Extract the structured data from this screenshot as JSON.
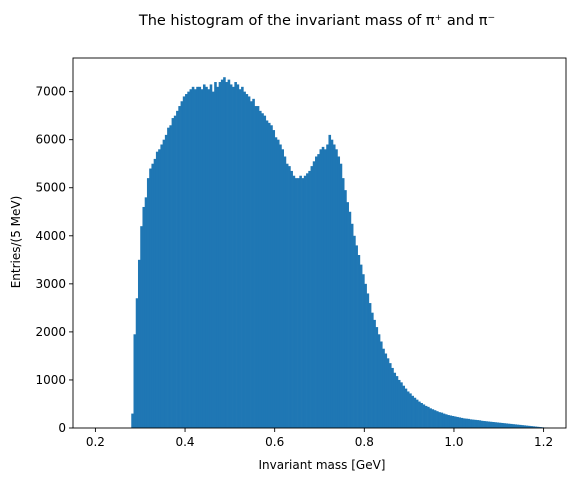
{
  "chart_data": {
    "type": "bar",
    "subtype": "histogram",
    "title": "The histogram of the invariant mass of π⁺ and π⁻",
    "xlabel": "Invariant mass [GeV]",
    "ylabel": "Entries/(5 MeV)",
    "xlim": [
      0.15,
      1.25
    ],
    "ylim": [
      0,
      7700
    ],
    "xticks": [
      "0.2",
      "0.4",
      "0.6",
      "0.8",
      "1.0",
      "1.2"
    ],
    "yticks": [
      "0",
      "1000",
      "2000",
      "3000",
      "4000",
      "5000",
      "6000",
      "7000"
    ],
    "bin_width": 0.005,
    "color": "#1f77b4",
    "grid": false,
    "series": [
      {
        "x_start": 0.275,
        "values": [
          0,
          300,
          1950,
          2700,
          3500,
          4200,
          4600,
          4800,
          5200,
          5400,
          5500,
          5600,
          5750,
          5800,
          5900,
          6000,
          6100,
          6250,
          6300,
          6450,
          6500,
          6600,
          6700,
          6800,
          6900,
          6950,
          7000,
          7050,
          7100,
          7050,
          7100,
          7100,
          7050,
          7150,
          7100,
          7050,
          7150,
          7000,
          7200,
          7100,
          7200,
          7250,
          7300,
          7200,
          7250,
          7150,
          7100,
          7200,
          7150,
          7050,
          7100,
          7000,
          6950,
          6900,
          6800,
          6850,
          6700,
          6700,
          6600,
          6550,
          6500,
          6400,
          6350,
          6300,
          6200,
          6050,
          6000,
          5900,
          5800,
          5650,
          5500,
          5450,
          5350,
          5250,
          5200,
          5200,
          5250,
          5200,
          5250,
          5300,
          5350,
          5450,
          5550,
          5650,
          5700,
          5800,
          5850,
          5800,
          5900,
          6100,
          6000,
          5900,
          5800,
          5650,
          5500,
          5200,
          4950,
          4700,
          4500,
          4250,
          4000,
          3800,
          3600,
          3400,
          3200,
          3000,
          2800,
          2600,
          2400,
          2250,
          2100,
          1950,
          1800,
          1650,
          1550,
          1450,
          1350,
          1250,
          1150,
          1080,
          1000,
          950,
          880,
          820,
          760,
          720,
          670,
          630,
          590,
          550,
          520,
          490,
          460,
          440,
          410,
          390,
          370,
          350,
          330,
          320,
          300,
          285,
          270,
          260,
          250,
          240,
          230,
          220,
          210,
          200,
          195,
          190,
          180,
          175,
          170,
          165,
          160,
          150,
          145,
          140,
          135,
          130,
          125,
          120,
          115,
          110,
          105,
          100,
          95,
          90,
          85,
          80,
          75,
          70,
          65,
          60,
          55,
          50,
          45,
          40,
          35,
          30,
          25,
          20,
          15,
          10,
          5
        ]
      }
    ]
  }
}
